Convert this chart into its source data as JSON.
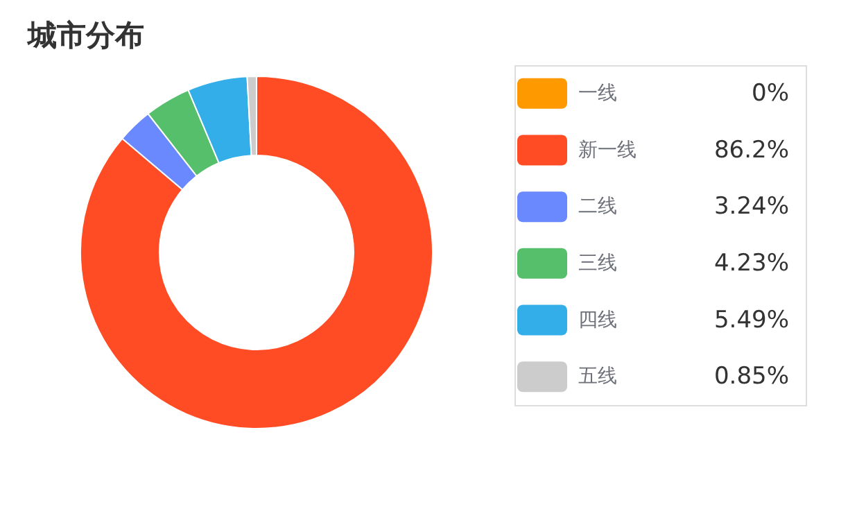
{
  "chart_data": {
    "type": "donut",
    "title": "城市分布",
    "categories": [
      "一线",
      "新一线",
      "二线",
      "三线",
      "四线",
      "五线"
    ],
    "values": [
      0,
      86.2,
      3.24,
      4.23,
      5.49,
      0.85
    ],
    "value_labels": [
      "0%",
      "86.2%",
      "3.24%",
      "4.23%",
      "5.49%",
      "0.85%"
    ],
    "colors": [
      "#ff9900",
      "#ff4c24",
      "#6b89ff",
      "#55bf6b",
      "#33aee8",
      "#cccccc"
    ],
    "legend": "right"
  }
}
